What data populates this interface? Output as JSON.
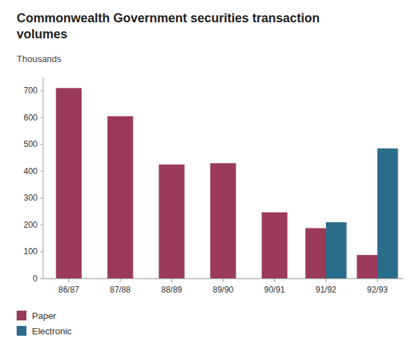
{
  "chart_data": {
    "type": "bar",
    "title": "Commonwealth Government securities transaction\nvolumes",
    "subtitle": "Thousands",
    "categories": [
      "86/87",
      "87/88",
      "88/89",
      "89/90",
      "90/91",
      "91/92",
      "92/93"
    ],
    "series": [
      {
        "name": "Paper",
        "color": "#9b3a5a",
        "values": [
          710,
          605,
          425,
          430,
          247,
          188,
          88
        ]
      },
      {
        "name": "Electronic",
        "color": "#2a6d8a",
        "values": [
          0,
          0,
          0,
          0,
          0,
          210,
          485
        ]
      }
    ],
    "ylim": [
      0,
      750
    ],
    "yticks": [
      0,
      100,
      200,
      300,
      400,
      500,
      600,
      700
    ],
    "grid": false,
    "legend": "bottom"
  }
}
